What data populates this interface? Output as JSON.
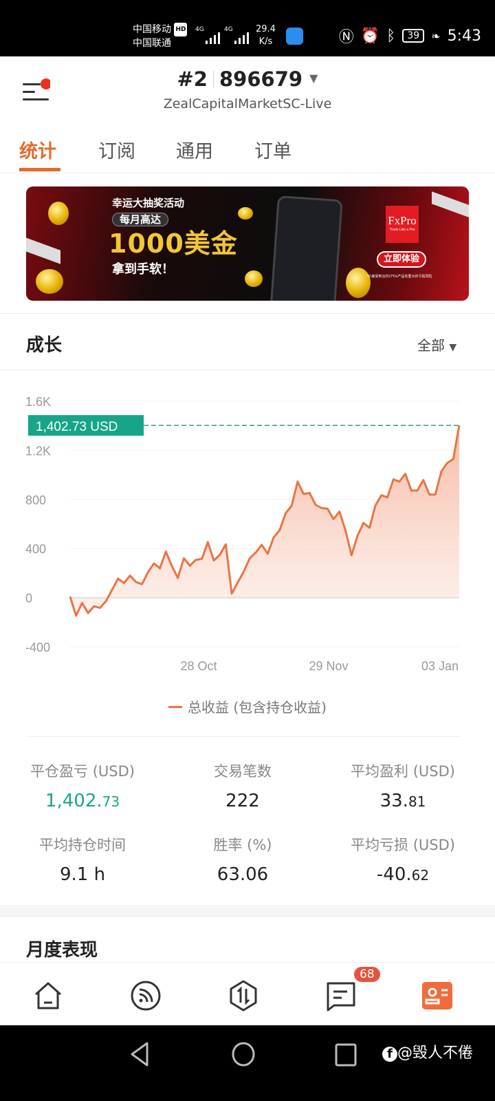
{
  "status_bar": {
    "carrier1": "中国移动",
    "hd": "HD",
    "carrier2": "中国联通",
    "net1": "4G",
    "net2": "4G",
    "speed_value": "29.4",
    "speed_unit": "K/s",
    "battery": "39",
    "time": "5:43"
  },
  "header": {
    "account_index": "#2",
    "account_number": "896679",
    "server": "ZealCapitalMarketSC-Live"
  },
  "tabs": [
    {
      "label": "统计",
      "active": true
    },
    {
      "label": "订阅"
    },
    {
      "label": "通用"
    },
    {
      "label": "订单"
    }
  ],
  "banner": {
    "line1": "幸运大抽奖活动",
    "line2": "每月高达",
    "line3": "1000美金",
    "line4": "拿到手软！",
    "brand": "FxPro",
    "brand_tagline": "Trade Like a Pro",
    "cta": "立即体验",
    "disclaimer": "*价差受到合约CFDs产品有重大的亏损风险"
  },
  "growth": {
    "title": "成长",
    "filter": "全部"
  },
  "chart_data": {
    "type": "area",
    "yticks": [
      "1.6K",
      "1.2K",
      "800",
      "400",
      "0",
      "-400"
    ],
    "ylim": [
      -400,
      1600
    ],
    "x_ticks": [
      "28 Oct",
      "29 Nov",
      "03 Jan"
    ],
    "current_label": "1,402.73 USD",
    "current_value": 1402.73,
    "grid": true,
    "legend_position": "bottom",
    "series": [
      {
        "name": "总收益 (包含持仓收益)",
        "color": "#ea7443",
        "values": [
          9,
          -147,
          -42,
          -125,
          -70,
          -83,
          -28,
          64,
          156,
          119,
          180,
          128,
          110,
          206,
          279,
          239,
          376,
          257,
          161,
          321,
          261,
          308,
          316,
          453,
          303,
          349,
          435,
          33,
          125,
          211,
          321,
          367,
          431,
          358,
          492,
          550,
          688,
          749,
          945,
          844,
          853,
          756,
          730,
          725,
          639,
          701,
          547,
          345,
          505,
          609,
          569,
          752,
          835,
          817,
          963,
          945,
          1009,
          872,
          872,
          958,
          840,
          840,
          1028,
          1097,
          1129,
          1402.73
        ]
      }
    ],
    "current_line_color": "#17a589"
  },
  "stats": [
    {
      "label": "平仓盈亏 (USD)",
      "int": "1,402.",
      "dec": "73",
      "color": "#17a589"
    },
    {
      "label": "交易笔数",
      "int": "222",
      "dec": ""
    },
    {
      "label": "平均盈利 (USD)",
      "int": "33.",
      "dec": "81"
    },
    {
      "label": "平均持仓时间",
      "int": "9.1 h",
      "dec": ""
    },
    {
      "label": "胜率 (%)",
      "int": "63.06",
      "dec": ""
    },
    {
      "label": "平均亏损 (USD)",
      "int": "-40.",
      "dec": "62"
    }
  ],
  "monthly": {
    "title": "月度表现"
  },
  "bottom_nav": {
    "items": [
      "home-icon",
      "feed-icon",
      "trade-icon",
      "messages-icon",
      "profile-icon"
    ],
    "messages_badge": "68"
  },
  "watermark": "@毁人不倦"
}
